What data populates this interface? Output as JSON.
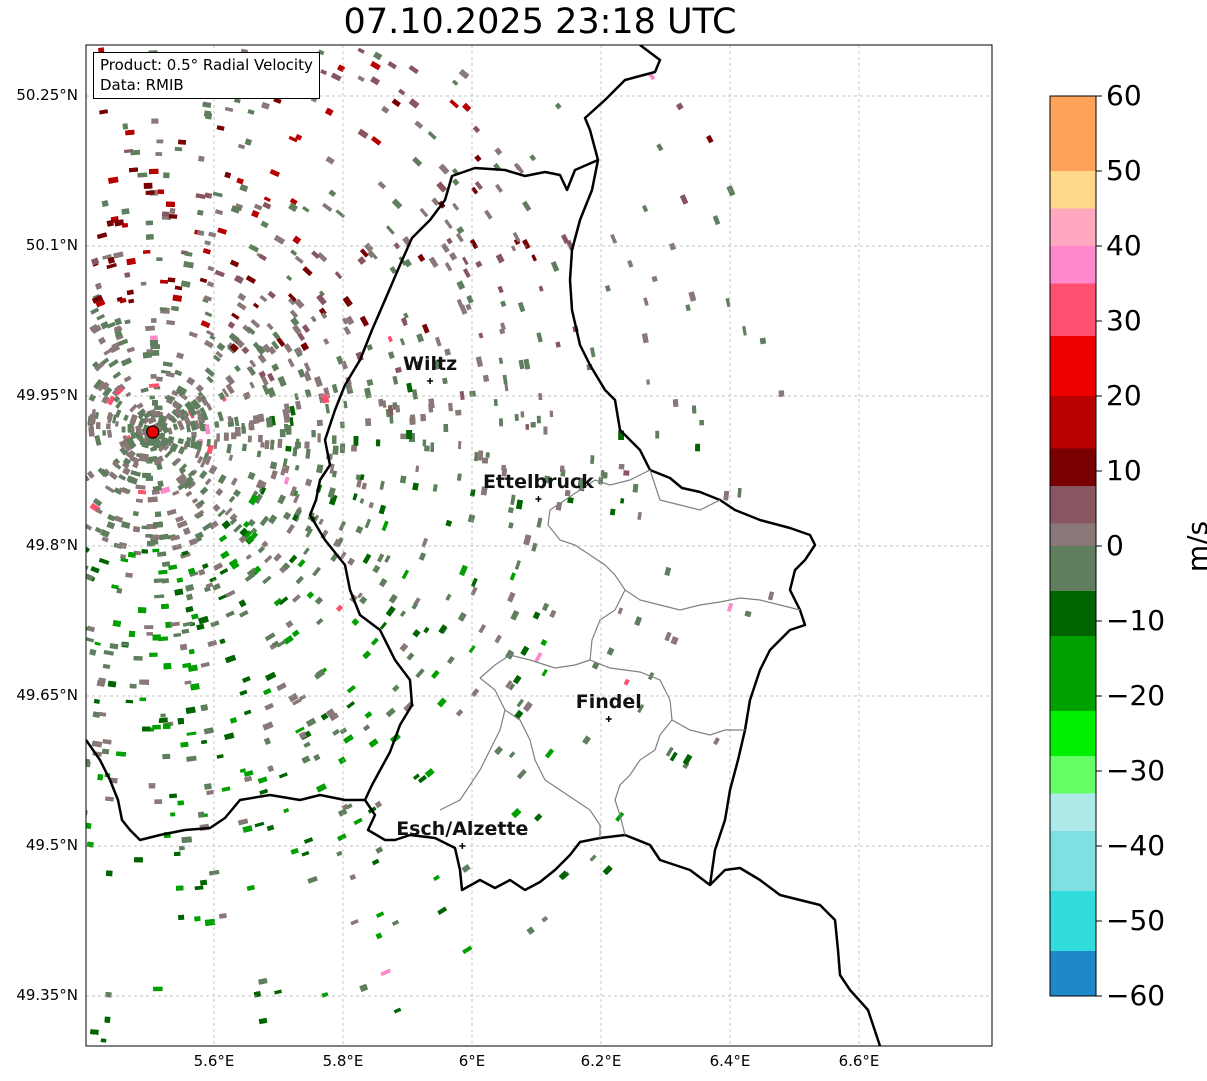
{
  "title": "07.10.2025 23:18 UTC",
  "info": {
    "product": "Product: 0.5° Radial Velocity",
    "data_source": "Data: RMIB"
  },
  "axes": {
    "lon_ticks": [
      {
        "value": 5.6,
        "label": "5.6°E"
      },
      {
        "value": 5.8,
        "label": "5.8°E"
      },
      {
        "value": 6.0,
        "label": "6°E"
      },
      {
        "value": 6.2,
        "label": "6.2°E"
      },
      {
        "value": 6.4,
        "label": "6.4°E"
      },
      {
        "value": 6.6,
        "label": "6.6°E"
      }
    ],
    "lat_ticks": [
      {
        "value": 50.25,
        "label": "50.25°N"
      },
      {
        "value": 50.1,
        "label": "50.1°N"
      },
      {
        "value": 49.95,
        "label": "49.95°N"
      },
      {
        "value": 49.8,
        "label": "49.8°N"
      },
      {
        "value": 49.65,
        "label": "49.65°N"
      },
      {
        "value": 49.5,
        "label": "49.5°N"
      },
      {
        "value": 49.35,
        "label": "49.35°N"
      }
    ]
  },
  "colorbar": {
    "unit": "m/s",
    "min": -60,
    "max": 60,
    "ticks": [
      "60",
      "50",
      "40",
      "30",
      "20",
      "10",
      "0",
      "−10",
      "−20",
      "−30",
      "−40",
      "−50",
      "−60"
    ],
    "tick_values": [
      60,
      50,
      40,
      30,
      20,
      10,
      0,
      -10,
      -20,
      -30,
      -40,
      -50,
      -60
    ],
    "stops": [
      {
        "from": 50,
        "to": 60,
        "color": "#ffa35a"
      },
      {
        "from": 45,
        "to": 50,
        "color": "#ffd98a"
      },
      {
        "from": 40,
        "to": 45,
        "color": "#ffa8c0"
      },
      {
        "from": 35,
        "to": 40,
        "color": "#ff88cc"
      },
      {
        "from": 28,
        "to": 35,
        "color": "#ff5070"
      },
      {
        "from": 20,
        "to": 28,
        "color": "#ee0000"
      },
      {
        "from": 13,
        "to": 20,
        "color": "#b80000"
      },
      {
        "from": 8,
        "to": 13,
        "color": "#780000"
      },
      {
        "from": 3,
        "to": 8,
        "color": "#885660"
      },
      {
        "from": 0,
        "to": 3,
        "color": "#8a7878"
      },
      {
        "from": -6,
        "to": 0,
        "color": "#5e7e5e"
      },
      {
        "from": -12,
        "to": -6,
        "color": "#006400"
      },
      {
        "from": -22,
        "to": -12,
        "color": "#00a000"
      },
      {
        "from": -28,
        "to": -22,
        "color": "#00ee00"
      },
      {
        "from": -33,
        "to": -28,
        "color": "#66ff66"
      },
      {
        "from": -38,
        "to": -33,
        "color": "#aeeaea"
      },
      {
        "from": -46,
        "to": -38,
        "color": "#7ee0e0"
      },
      {
        "from": -54,
        "to": -46,
        "color": "#30dcdc"
      },
      {
        "from": -60,
        "to": -54,
        "color": "#1e88c8"
      }
    ]
  },
  "cities": [
    {
      "name": "Wiltz",
      "lon": 5.935,
      "lat": 49.965
    },
    {
      "name": "Ettelbruck",
      "lon": 6.103,
      "lat": 49.847
    },
    {
      "name": "Findel",
      "lon": 6.212,
      "lat": 49.627
    },
    {
      "name": "Esch/Alzette",
      "lon": 5.985,
      "lat": 49.5
    }
  ],
  "radar_site": {
    "lon": 5.505,
    "lat": 49.914
  }
}
